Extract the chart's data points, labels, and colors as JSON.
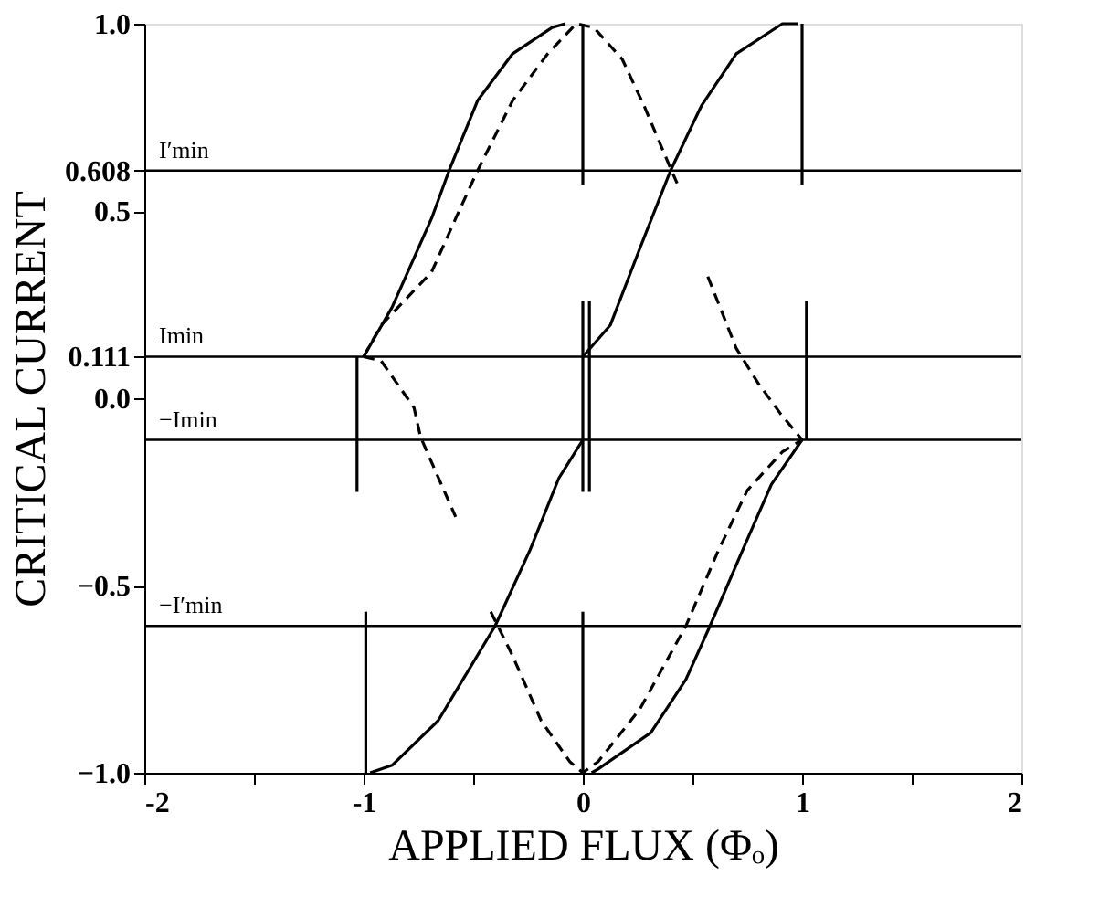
{
  "chart_data": {
    "type": "line",
    "xlabel": "APPLIED FLUX (Φₒ)",
    "ylabel": "CRITICAL CURRENT",
    "xlim": [
      -2,
      2
    ],
    "ylim": [
      -1,
      1
    ],
    "xticks": [
      -2,
      {
        "value": -1.5,
        "label": null
      },
      -1,
      {
        "value": -0.5,
        "label": null
      },
      0,
      {
        "value": 0.5,
        "label": null
      },
      1,
      {
        "value": 1.5,
        "label": null
      },
      2
    ],
    "yticks": [
      {
        "value": -1,
        "label": "−1.0"
      },
      {
        "value": -0.5,
        "label": "−0.5"
      },
      {
        "value": 0,
        "label": "0.0"
      },
      0.111,
      0.5,
      0.608,
      {
        "value": 1,
        "label": "1.0"
      }
    ],
    "grid": false,
    "marker": "none",
    "ref_lines": [
      {
        "axis": "y",
        "value": 0.608,
        "label": "I′min",
        "color": "#000000"
      },
      {
        "axis": "y",
        "value": 0.111,
        "label": "Imin",
        "color": "#000000"
      },
      {
        "axis": "y",
        "value": -0.111,
        "label": "−Imin",
        "color": "#000000"
      },
      {
        "axis": "y",
        "value": -0.608,
        "label": "−I′min",
        "color": "#000000"
      }
    ],
    "series": [
      {
        "color": "#000000",
        "line_style": "solid",
        "x": [
          -1.0,
          -0.87,
          -0.69,
          -0.61,
          -0.48,
          -0.32,
          -0.14,
          -0.08
        ],
        "values": [
          0.111,
          0.243,
          0.48,
          0.608,
          0.795,
          0.92,
          0.99,
          1.0
        ]
      },
      {
        "color": "#000000",
        "line_style": "solid",
        "x": [
          0.0,
          0.0
        ],
        "values": [
          1.0,
          0.57
        ]
      },
      {
        "color": "#000000",
        "line_style": "solid",
        "x": [
          -1.03,
          -1.03
        ],
        "values": [
          0.111,
          -0.25
        ]
      },
      {
        "color": "#000000",
        "line_style": "dashed",
        "x": [
          -1.0,
          -0.92,
          -0.69,
          -0.58,
          -0.48,
          -0.32,
          -0.16,
          -0.03,
          0.05,
          0.18,
          0.28,
          0.4,
          0.43
        ],
        "values": [
          0.111,
          0.195,
          0.337,
          0.48,
          0.608,
          0.795,
          0.92,
          1.0,
          0.99,
          0.905,
          0.78,
          0.614,
          0.574
        ]
      },
      {
        "color": "#000000",
        "line_style": "dashed",
        "x": [
          -1.0,
          -0.92,
          -0.77,
          -0.74,
          -0.58
        ],
        "values": [
          0.111,
          0.1,
          -0.025,
          -0.104,
          -0.317
        ]
      },
      {
        "color": "#000000",
        "line_style": "solid",
        "x": [
          0.0,
          0.125,
          0.26,
          0.4,
          0.54,
          0.7,
          0.91,
          0.98
        ],
        "values": [
          0.111,
          0.195,
          0.4,
          0.608,
          0.78,
          0.92,
          1.0,
          1.0
        ]
      },
      {
        "color": "#000000",
        "line_style": "solid",
        "x": [
          1.0,
          1.0
        ],
        "values": [
          1.0,
          0.57
        ]
      },
      {
        "color": "#000000",
        "line_style": "solid",
        "x": [
          0.0,
          0.0
        ],
        "values": [
          0.26,
          -0.25
        ]
      },
      {
        "color": "#000000",
        "line_style": "solid",
        "x": [
          0.03,
          0.03
        ],
        "values": [
          0.26,
          -0.25
        ]
      },
      {
        "color": "#000000",
        "line_style": "dashed",
        "x": [
          0.57,
          0.7,
          0.8,
          0.9,
          1.0
        ],
        "values": [
          0.325,
          0.133,
          0.04,
          -0.04,
          -0.111
        ]
      },
      {
        "color": "#000000",
        "line_style": "solid",
        "x": [
          1.02,
          1.02
        ],
        "values": [
          0.26,
          -0.111
        ]
      },
      {
        "color": "#000000",
        "line_style": "solid",
        "x": [
          -0.97,
          -0.87,
          -0.66,
          -0.4,
          -0.24,
          -0.11,
          0.0
        ],
        "values": [
          -1.0,
          -0.98,
          -0.861,
          -0.608,
          -0.404,
          -0.214,
          -0.111
        ]
      },
      {
        "color": "#000000",
        "line_style": "solid",
        "x": [
          -0.99,
          -0.99
        ],
        "values": [
          -0.57,
          -1.0
        ]
      },
      {
        "color": "#000000",
        "line_style": "dashed",
        "x": [
          -0.42,
          -0.32,
          -0.19,
          -0.06,
          0.0,
          0.07,
          0.26,
          0.47,
          0.62,
          0.75,
          0.91,
          1.0
        ],
        "values": [
          -0.57,
          -0.688,
          -0.861,
          -0.97,
          -1.0,
          -0.97,
          -0.83,
          -0.608,
          -0.404,
          -0.246,
          -0.143,
          -0.111
        ]
      },
      {
        "color": "#000000",
        "line_style": "solid",
        "x": [
          0.04,
          0.07,
          0.31,
          0.47,
          0.58,
          0.73,
          0.86,
          1.0
        ],
        "values": [
          -1.0,
          -0.99,
          -0.893,
          -0.751,
          -0.608,
          -0.404,
          -0.23,
          -0.111
        ]
      },
      {
        "color": "#000000",
        "line_style": "solid",
        "x": [
          0.0,
          0.0
        ],
        "values": [
          -0.57,
          -1.0
        ]
      }
    ]
  }
}
